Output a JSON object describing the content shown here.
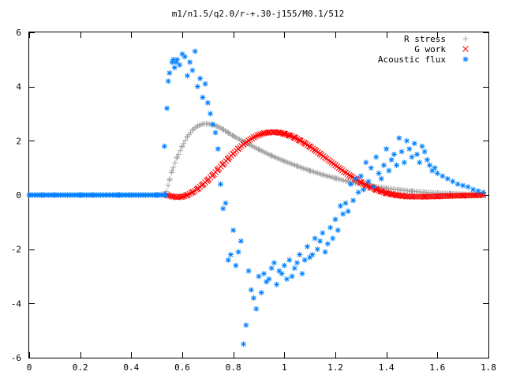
{
  "chart_data": {
    "type": "scatter",
    "title": "m1/n1.5/q2.0/r-+.30-j155/M0.1/512",
    "xlabel": "",
    "ylabel": "",
    "xlim": [
      0,
      1.8
    ],
    "ylim": [
      -6,
      6
    ],
    "x_ticks": [
      "0",
      "0.2",
      "0.4",
      "0.6",
      "0.8",
      "1",
      "1.2",
      "1.4",
      "1.6",
      "1.8"
    ],
    "x_tick_values": [
      0,
      0.2,
      0.4,
      0.6,
      0.8,
      1.0,
      1.2,
      1.4,
      1.6,
      1.8
    ],
    "y_ticks": [
      "6",
      "4",
      "2",
      "0",
      "-2",
      "-4",
      "-6"
    ],
    "y_tick_values": [
      6,
      4,
      2,
      0,
      -2,
      -4,
      -6
    ],
    "grid": false,
    "legend_position": "top-right",
    "series": [
      {
        "name": "R stress",
        "marker": "+",
        "color": "#a0a0a0",
        "x": [
          0.0,
          0.1,
          0.2,
          0.3,
          0.4,
          0.5,
          0.535,
          0.55,
          0.56,
          0.58,
          0.6,
          0.62,
          0.64,
          0.66,
          0.68,
          0.7,
          0.72,
          0.74,
          0.76,
          0.78,
          0.8,
          0.85,
          0.9,
          0.95,
          1.0,
          1.05,
          1.1,
          1.15,
          1.2,
          1.25,
          1.3,
          1.35,
          1.4,
          1.45,
          1.5,
          1.55,
          1.6,
          1.65,
          1.7,
          1.75,
          1.78
        ],
        "y": [
          0,
          0,
          0,
          0,
          0,
          0,
          0.05,
          0.55,
          0.9,
          1.4,
          1.8,
          2.15,
          2.4,
          2.55,
          2.62,
          2.63,
          2.6,
          2.52,
          2.42,
          2.3,
          2.18,
          1.92,
          1.68,
          1.45,
          1.25,
          1.07,
          0.9,
          0.75,
          0.62,
          0.5,
          0.4,
          0.32,
          0.25,
          0.19,
          0.14,
          0.1,
          0.07,
          0.05,
          0.03,
          0.02,
          0.01
        ]
      },
      {
        "name": "G work",
        "marker": "x",
        "color": "#ff0000",
        "x": [
          0.54,
          0.56,
          0.58,
          0.6,
          0.62,
          0.64,
          0.66,
          0.68,
          0.7,
          0.72,
          0.74,
          0.76,
          0.78,
          0.8,
          0.82,
          0.84,
          0.86,
          0.88,
          0.9,
          0.92,
          0.94,
          0.96,
          0.98,
          1.0,
          1.02,
          1.04,
          1.06,
          1.08,
          1.1,
          1.12,
          1.14,
          1.16,
          1.18,
          1.2,
          1.22,
          1.24,
          1.26,
          1.28,
          1.3,
          1.32,
          1.34,
          1.36,
          1.38,
          1.4,
          1.42,
          1.44,
          1.46,
          1.48,
          1.5,
          1.55,
          1.6,
          1.65,
          1.7,
          1.75,
          1.78
        ],
        "y": [
          0,
          -0.05,
          -0.08,
          -0.06,
          0.0,
          0.1,
          0.23,
          0.38,
          0.55,
          0.74,
          0.94,
          1.14,
          1.34,
          1.53,
          1.71,
          1.87,
          2.01,
          2.13,
          2.22,
          2.28,
          2.31,
          2.32,
          2.3,
          2.26,
          2.2,
          2.12,
          2.02,
          1.91,
          1.79,
          1.66,
          1.52,
          1.38,
          1.24,
          1.1,
          0.96,
          0.83,
          0.7,
          0.58,
          0.47,
          0.37,
          0.28,
          0.2,
          0.13,
          0.07,
          0.03,
          -0.01,
          -0.03,
          -0.05,
          -0.06,
          -0.06,
          -0.05,
          -0.03,
          -0.02,
          -0.01,
          0.0
        ]
      },
      {
        "name": "Acoustic flux",
        "marker": "*",
        "color": "#0080ff",
        "x": [
          0.0,
          0.05,
          0.1,
          0.15,
          0.2,
          0.25,
          0.3,
          0.35,
          0.4,
          0.45,
          0.5,
          0.535,
          0.53,
          0.54,
          0.545,
          0.55,
          0.56,
          0.565,
          0.57,
          0.575,
          0.58,
          0.59,
          0.6,
          0.61,
          0.62,
          0.63,
          0.64,
          0.65,
          0.66,
          0.67,
          0.68,
          0.69,
          0.7,
          0.71,
          0.72,
          0.73,
          0.74,
          0.75,
          0.76,
          0.77,
          0.78,
          0.79,
          0.8,
          0.81,
          0.82,
          0.83,
          0.84,
          0.85,
          0.86,
          0.87,
          0.88,
          0.89,
          0.9,
          0.91,
          0.92,
          0.93,
          0.94,
          0.95,
          0.96,
          0.97,
          0.98,
          0.99,
          1.0,
          1.01,
          1.02,
          1.03,
          1.04,
          1.05,
          1.06,
          1.07,
          1.08,
          1.09,
          1.1,
          1.11,
          1.12,
          1.13,
          1.14,
          1.15,
          1.16,
          1.17,
          1.18,
          1.19,
          1.2,
          1.21,
          1.22,
          1.23,
          1.24,
          1.25,
          1.26,
          1.27,
          1.28,
          1.29,
          1.3,
          1.31,
          1.32,
          1.33,
          1.34,
          1.35,
          1.36,
          1.37,
          1.38,
          1.39,
          1.4,
          1.41,
          1.42,
          1.43,
          1.44,
          1.45,
          1.46,
          1.47,
          1.48,
          1.49,
          1.5,
          1.51,
          1.52,
          1.53,
          1.54,
          1.55,
          1.56,
          1.57,
          1.58,
          1.59,
          1.6,
          1.62,
          1.64,
          1.66,
          1.68,
          1.7,
          1.72,
          1.74,
          1.76,
          1.78
        ],
        "y": [
          0,
          0,
          0,
          0,
          0,
          0,
          0,
          0,
          0,
          0,
          0,
          0,
          1.8,
          3.2,
          4.2,
          4.5,
          4.9,
          5.0,
          4.7,
          4.9,
          5.0,
          4.8,
          5.2,
          5.1,
          4.4,
          4.9,
          4.6,
          5.3,
          4.0,
          4.3,
          3.6,
          4.1,
          3.4,
          3.0,
          2.6,
          2.3,
          1.7,
          0.4,
          -0.5,
          -0.3,
          -2.4,
          -2.2,
          -1.3,
          -2.6,
          -2.1,
          -1.7,
          -5.5,
          -4.8,
          -2.8,
          -3.5,
          -3.8,
          -4.2,
          -3.0,
          -3.6,
          -2.9,
          -3.2,
          -3.1,
          -2.7,
          -2.5,
          -3.3,
          -2.8,
          -2.9,
          -2.6,
          -3.1,
          -2.4,
          -3.0,
          -2.7,
          -2.5,
          -2.2,
          -2.9,
          -2.4,
          -1.9,
          -2.3,
          -2.2,
          -1.6,
          -2.0,
          -1.7,
          -1.4,
          -2.1,
          -1.8,
          -1.2,
          -1.6,
          -0.9,
          -1.3,
          -0.4,
          -0.7,
          -0.3,
          -0.6,
          0.4,
          -0.2,
          0.6,
          0.1,
          0.7,
          0.2,
          1.2,
          0.5,
          1.0,
          0.3,
          1.4,
          0.8,
          0.6,
          1.1,
          1.7,
          0.9,
          1.3,
          1.5,
          1.1,
          2.1,
          1.6,
          1.2,
          2.0,
          1.7,
          1.4,
          1.9,
          1.5,
          1.2,
          1.8,
          1.6,
          1.3,
          1.1,
          0.9,
          1.0,
          0.8,
          0.7,
          0.6,
          0.5,
          0.4,
          0.35,
          0.3,
          0.2,
          0.15,
          0.1
        ]
      }
    ]
  }
}
